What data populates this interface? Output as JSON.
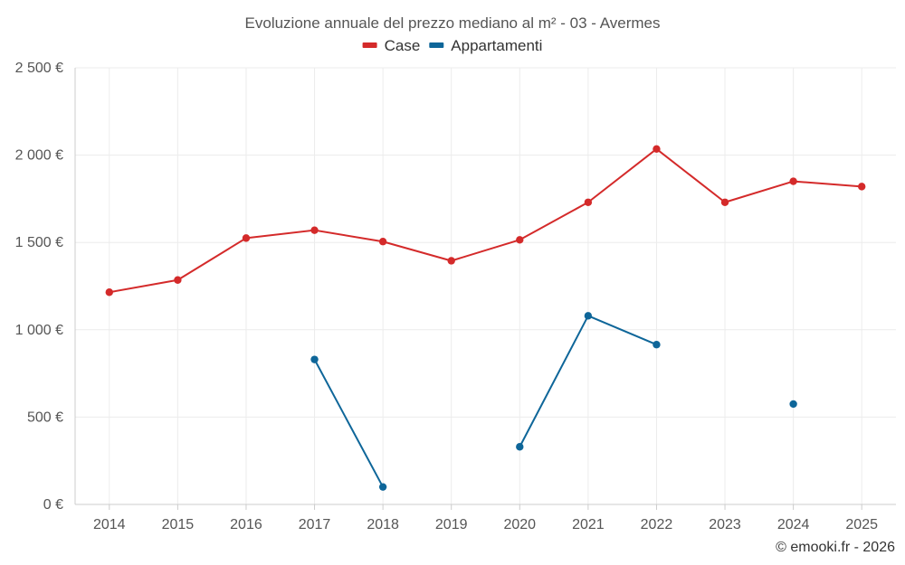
{
  "chart_data": {
    "type": "line",
    "title": "Evoluzione annuale del prezzo mediano al m² - 03 - Avermes",
    "xlabel": "",
    "ylabel": "",
    "categories": [
      "2014",
      "2015",
      "2016",
      "2017",
      "2018",
      "2019",
      "2020",
      "2021",
      "2022",
      "2023",
      "2024",
      "2025"
    ],
    "ylim": [
      0,
      2500
    ],
    "yticks": [
      0,
      500,
      1000,
      1500,
      2000,
      2500
    ],
    "ytick_labels": [
      "0 €",
      "500 €",
      "1 000 €",
      "1 500 €",
      "2 000 €",
      "2 500 €"
    ],
    "grid": true,
    "legend_position": "top-center",
    "series": [
      {
        "name": "Case",
        "color": "#d42a2a",
        "values": [
          1215,
          1285,
          1525,
          1570,
          1505,
          1395,
          1515,
          1730,
          2035,
          1730,
          1850,
          1820
        ]
      },
      {
        "name": "Appartamenti",
        "color": "#0e6699",
        "values": [
          null,
          null,
          null,
          830,
          100,
          null,
          330,
          1080,
          915,
          null,
          575,
          null
        ]
      }
    ]
  },
  "credit": "© emooki.fr - 2026"
}
